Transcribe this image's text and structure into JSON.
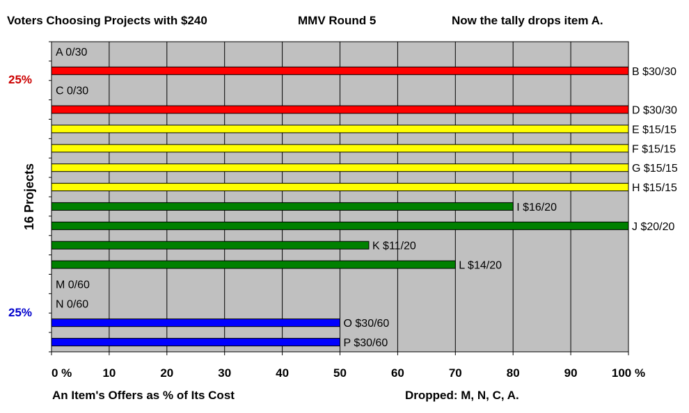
{
  "header": {
    "left": "Voters Choosing Projects with $240",
    "center": "MMV Round 5",
    "right": "Now the tally drops item A."
  },
  "side": {
    "ylabel": "16 Projects",
    "pct_top": "25%",
    "pct_top_color": "#cc0000",
    "pct_bottom": "25%",
    "pct_bottom_color": "#0000cc"
  },
  "footer": {
    "xlabel": "An Item's Offers as % of Its Cost",
    "dropped": "Dropped: M, N, C, A."
  },
  "chart_data": {
    "type": "bar",
    "orientation": "horizontal",
    "xlim": [
      0,
      100
    ],
    "x_ticks": [
      0,
      10,
      20,
      30,
      40,
      50,
      60,
      70,
      80,
      90,
      100
    ],
    "x_tick_labels": [
      "0 %",
      "10",
      "20",
      "30",
      "40",
      "50",
      "60",
      "70",
      "80",
      "90",
      "100 %"
    ],
    "grid": true,
    "plot_background": "#c0c0c0",
    "items": [
      {
        "label": "A 0/30",
        "value": 0,
        "color": null
      },
      {
        "label": "B $30/30",
        "value": 100,
        "color": "#ff0000"
      },
      {
        "label": "C 0/30",
        "value": 0,
        "color": null
      },
      {
        "label": "D $30/30",
        "value": 100,
        "color": "#ff0000"
      },
      {
        "label": "E $15/15",
        "value": 100,
        "color": "#ffff00"
      },
      {
        "label": "F $15/15",
        "value": 100,
        "color": "#ffff00"
      },
      {
        "label": "G $15/15",
        "value": 100,
        "color": "#ffff00"
      },
      {
        "label": "H $15/15",
        "value": 100,
        "color": "#ffff00"
      },
      {
        "label": "I $16/20",
        "value": 80,
        "color": "#008000"
      },
      {
        "label": "J $20/20",
        "value": 100,
        "color": "#008000"
      },
      {
        "label": "K $11/20",
        "value": 55,
        "color": "#008000"
      },
      {
        "label": "L $14/20",
        "value": 70,
        "color": "#008000"
      },
      {
        "label": "M 0/60",
        "value": 0,
        "color": null
      },
      {
        "label": "N 0/60",
        "value": 0,
        "color": null
      },
      {
        "label": "O $30/60",
        "value": 50,
        "color": "#0000ff"
      },
      {
        "label": "P $30/60",
        "value": 50,
        "color": "#0000ff"
      }
    ]
  }
}
